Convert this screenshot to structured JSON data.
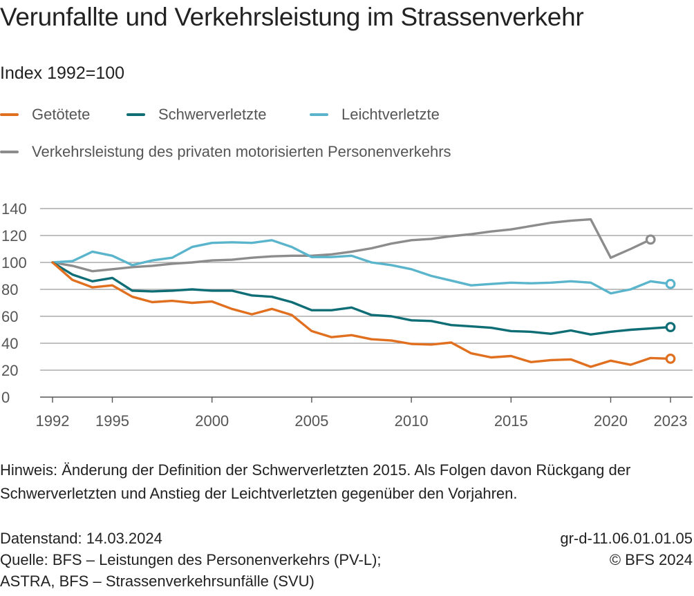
{
  "title": "Verunfallte und Verkehrsleistung im Strassenverkehr",
  "subtitle": "Index 1992=100",
  "note": "Hinweis: Änderung der Definition der Schwerverletzten 2015. Als Folgen davon Rückgang der Schwerverletzten und Anstieg der Leichtverletzten gegenüber den Vorjahren.",
  "footer": {
    "datenstand": "Datenstand: 14.03.2024",
    "quelle_1": "Quelle: BFS – Leistungen des Personenverkehrs (PV-L);",
    "quelle_2": "ASTRA, BFS – Strassenverkehrsunfälle (SVU)",
    "code": "gr-d-11.06.01.01.05",
    "copyright": "© BFS 2024"
  },
  "chart_data": {
    "type": "line",
    "title": "Verunfallte und Verkehrsleistung im Strassenverkehr",
    "ylabel": "Index 1992=100",
    "xlabel": "",
    "xlim": [
      1992,
      2023
    ],
    "ylim": [
      0,
      140
    ],
    "yticks": [
      0,
      20,
      40,
      60,
      80,
      100,
      120,
      140
    ],
    "xticks": [
      1992,
      1995,
      2000,
      2005,
      2010,
      2015,
      2020,
      2023
    ],
    "grid": "horizontal",
    "legend": "top",
    "series": [
      {
        "name": "Getötete",
        "color": "#e07020",
        "x": [
          1992,
          1993,
          1994,
          1995,
          1996,
          1997,
          1998,
          1999,
          2000,
          2001,
          2002,
          2003,
          2004,
          2005,
          2006,
          2007,
          2008,
          2009,
          2010,
          2011,
          2012,
          2013,
          2014,
          2015,
          2016,
          2017,
          2018,
          2019,
          2020,
          2021,
          2022,
          2023
        ],
        "values": [
          100,
          87,
          81.5,
          83,
          74.5,
          70.5,
          71.5,
          70,
          71,
          65.5,
          61.5,
          65.5,
          61,
          49,
          44.5,
          46,
          43,
          42,
          39.5,
          39,
          40.5,
          32.5,
          29.5,
          30.5,
          26,
          27.5,
          28,
          22.5,
          27,
          24,
          29,
          28.5
        ],
        "end_marker": 2023
      },
      {
        "name": "Schwerverletzte",
        "color": "#0e6d75",
        "x": [
          1992,
          1993,
          1994,
          1995,
          1996,
          1997,
          1998,
          1999,
          2000,
          2001,
          2002,
          2003,
          2004,
          2005,
          2006,
          2007,
          2008,
          2009,
          2010,
          2011,
          2012,
          2013,
          2014,
          2015,
          2016,
          2017,
          2018,
          2019,
          2020,
          2021,
          2022,
          2023
        ],
        "values": [
          100,
          91,
          86,
          88.5,
          79,
          78.5,
          79,
          80,
          79,
          79,
          75.5,
          74.5,
          70.5,
          64.5,
          64.5,
          66.5,
          61,
          60,
          57,
          56.5,
          53.5,
          52.5,
          51.5,
          49,
          48.5,
          47,
          49.5,
          46.5,
          48.5,
          50,
          51,
          52
        ],
        "end_marker": 2023
      },
      {
        "name": "Leichtverletzte",
        "color": "#5ab5cc",
        "x": [
          1992,
          1993,
          1994,
          1995,
          1996,
          1997,
          1998,
          1999,
          2000,
          2001,
          2002,
          2003,
          2004,
          2005,
          2006,
          2007,
          2008,
          2009,
          2010,
          2011,
          2012,
          2013,
          2014,
          2015,
          2016,
          2017,
          2018,
          2019,
          2020,
          2021,
          2022,
          2023
        ],
        "values": [
          100,
          101,
          108,
          105,
          98,
          101.5,
          103.5,
          111.5,
          114.5,
          115,
          114.5,
          116.5,
          111.5,
          104,
          104,
          105,
          100,
          98,
          95,
          90,
          86.5,
          83,
          84,
          85,
          84.5,
          85,
          86,
          85,
          77,
          80,
          86,
          84
        ],
        "end_marker": 2023
      },
      {
        "name": "Verkehrsleistung des privaten motorisierten Personenverkehrs",
        "color": "#8c8c8c",
        "x": [
          1992,
          1993,
          1994,
          1995,
          1996,
          1997,
          1998,
          1999,
          2000,
          2001,
          2002,
          2003,
          2004,
          2005,
          2006,
          2007,
          2008,
          2009,
          2010,
          2011,
          2012,
          2013,
          2014,
          2015,
          2016,
          2017,
          2018,
          2019,
          2020,
          2021,
          2022
        ],
        "values": [
          100,
          97.5,
          93.5,
          95,
          96.5,
          97.5,
          99,
          100,
          101.5,
          102,
          103.5,
          104.5,
          105,
          105,
          106,
          108,
          110.5,
          114,
          116.5,
          117.5,
          119.5,
          121,
          123,
          124.5,
          127,
          129.5,
          131,
          132,
          103.5,
          110,
          117
        ],
        "end_marker": 2022
      }
    ]
  }
}
